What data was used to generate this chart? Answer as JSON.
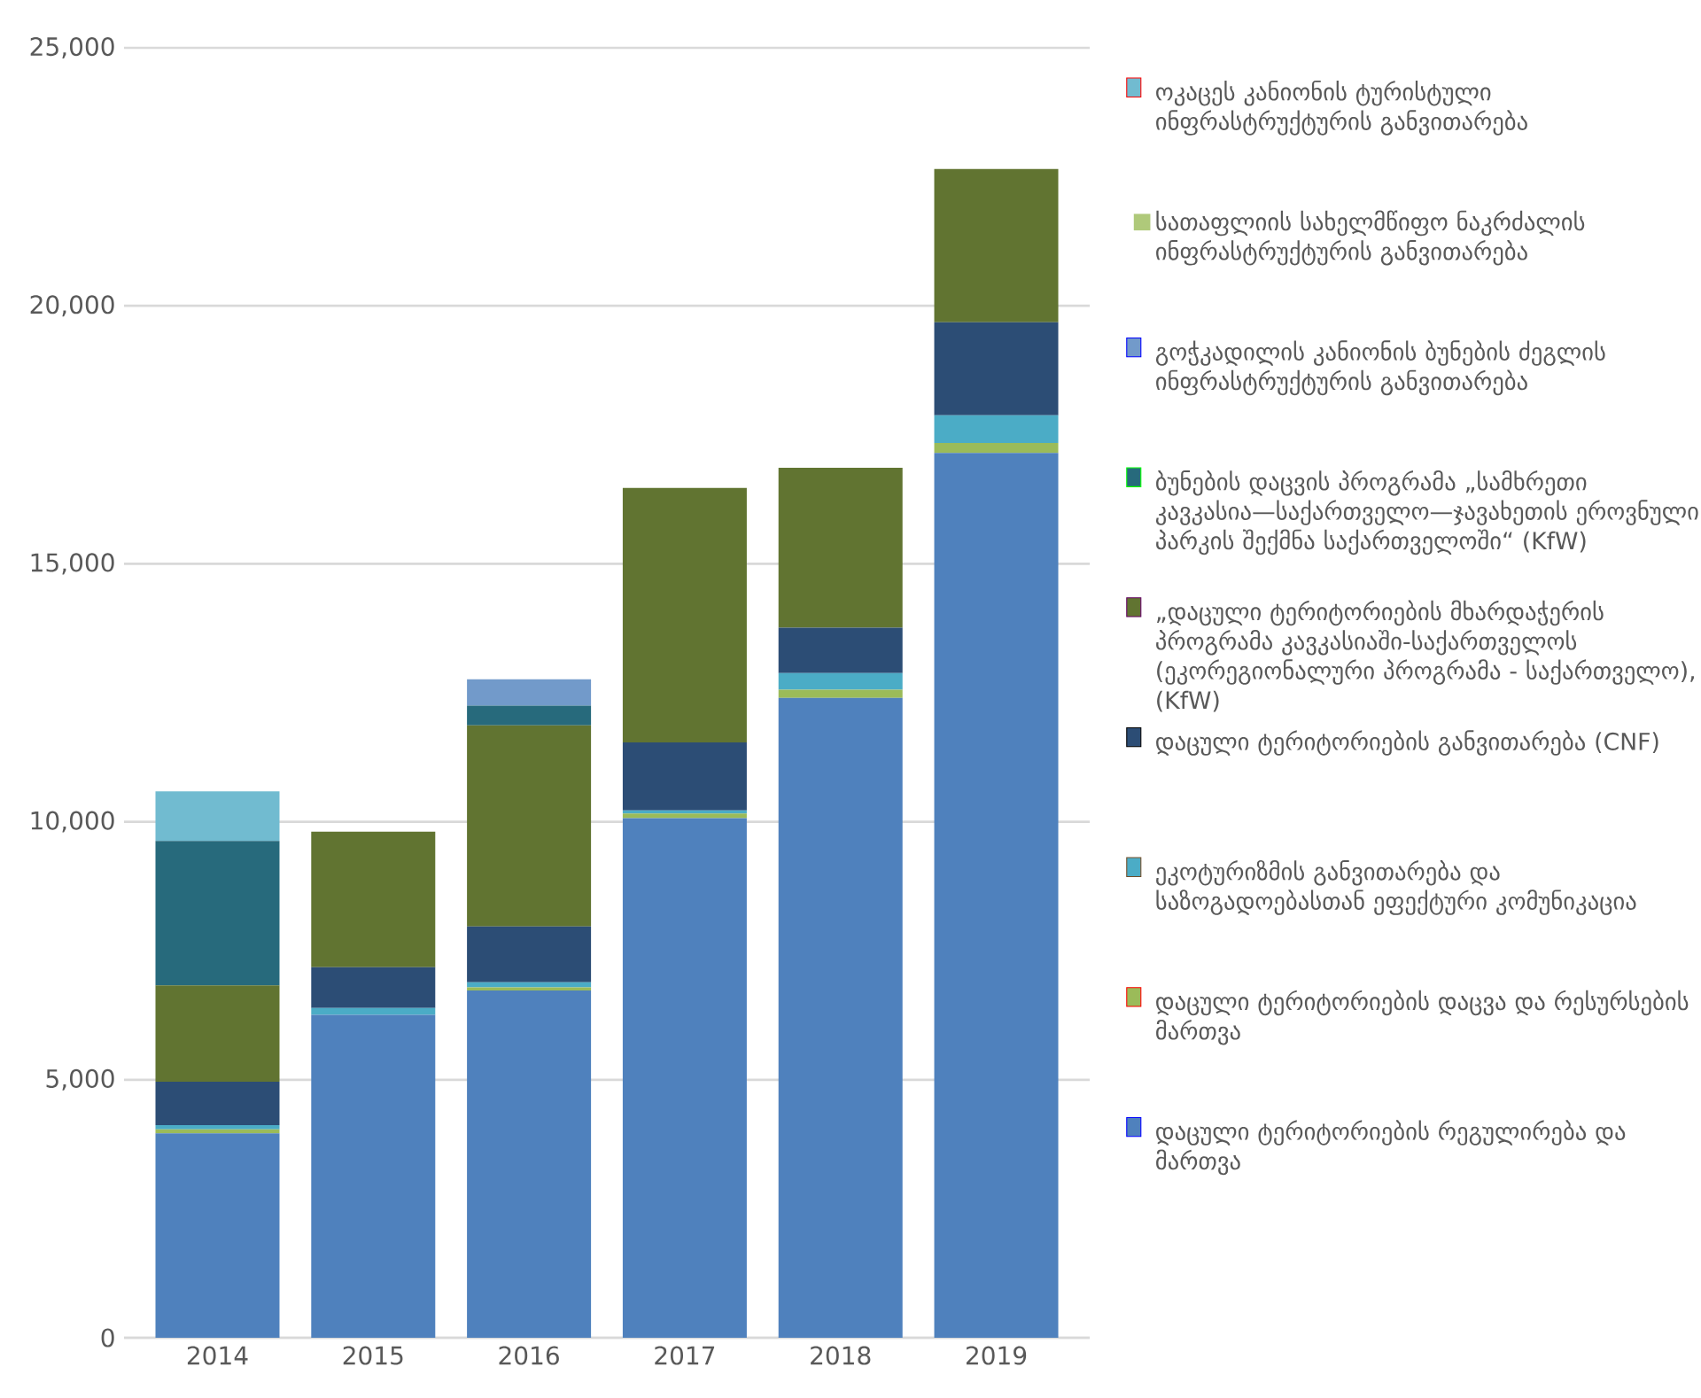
{
  "chart_data": {
    "type": "bar",
    "stacked": true,
    "categories": [
      "2014",
      "2015",
      "2016",
      "2017",
      "2018",
      "2019"
    ],
    "series": [
      {
        "name": "დაცული ტერიტორიების რეგულირება და მართვა",
        "color": "#4f81bd",
        "values": [
          3960,
          6260,
          6730,
          10070,
          12400,
          17150
        ]
      },
      {
        "name": "დაცული ტერიტორიების დაცვა და რესურსების მართვა",
        "color": "#9bbb59",
        "values": [
          80,
          null,
          60,
          90,
          160,
          190
        ]
      },
      {
        "name": "ეკოტურიზმის განვითარება და საზოგადოებასთან ეფექტური კომუნიკაცია",
        "color": "#4bacc6",
        "values": [
          80,
          130,
          100,
          60,
          320,
          540
        ]
      },
      {
        "name": "დაცული ტერიტორიების განვითარება (CNF)",
        "color": "#2c4d75",
        "values": [
          840,
          790,
          1080,
          1320,
          880,
          1800
        ]
      },
      {
        "name": "„დაცული ტერიტორიების მხარდაჭერის პროგრამა კავკასიაში-საქართველოს (ეკორეგიონალური პროგრამა - საქართველო), (KfW)",
        "color": "#617431",
        "values": [
          1870,
          2630,
          3900,
          4930,
          3100,
          2970
        ]
      },
      {
        "name": "ბუნების დაცვის პროგრამა „სამხრეთი კავკასია—საქართველო—ჯავახეთის ეროვნული პარკის შექმნა საქართველოში“ (KfW)",
        "color": "#276a7c",
        "values": [
          2800,
          null,
          380,
          null,
          null,
          null
        ]
      },
      {
        "name": "გოჭკადილის კანიონის ბუნების ძეგლის ინფრასტრუქტურის განვითარება",
        "color": "#729aca",
        "values": [
          null,
          null,
          510,
          null,
          null,
          null
        ]
      },
      {
        "name": "სათაფლიის სახელმწიფო ნაკრძალის ინფრასტრუქტურის განვითარება",
        "color": "#afc97a",
        "values": [
          null,
          null,
          null,
          null,
          null,
          null
        ]
      },
      {
        "name": "ოკაცეს კანიონის ტურისტული ინფრასტრუქტურის განვითარება",
        "color": "#71bbd0",
        "values": [
          960,
          null,
          null,
          null,
          null,
          null
        ]
      }
    ],
    "ylim": [
      0,
      25000
    ],
    "yticks": [
      {
        "value": 0,
        "label": "0"
      },
      {
        "value": 5000,
        "label": "5,000"
      },
      {
        "value": 10000,
        "label": "10,000"
      },
      {
        "value": 15000,
        "label": "15,000"
      },
      {
        "value": 20000,
        "label": "20,000"
      },
      {
        "value": 25000,
        "label": "25,000"
      }
    ],
    "grid": "y",
    "legend": "right"
  }
}
